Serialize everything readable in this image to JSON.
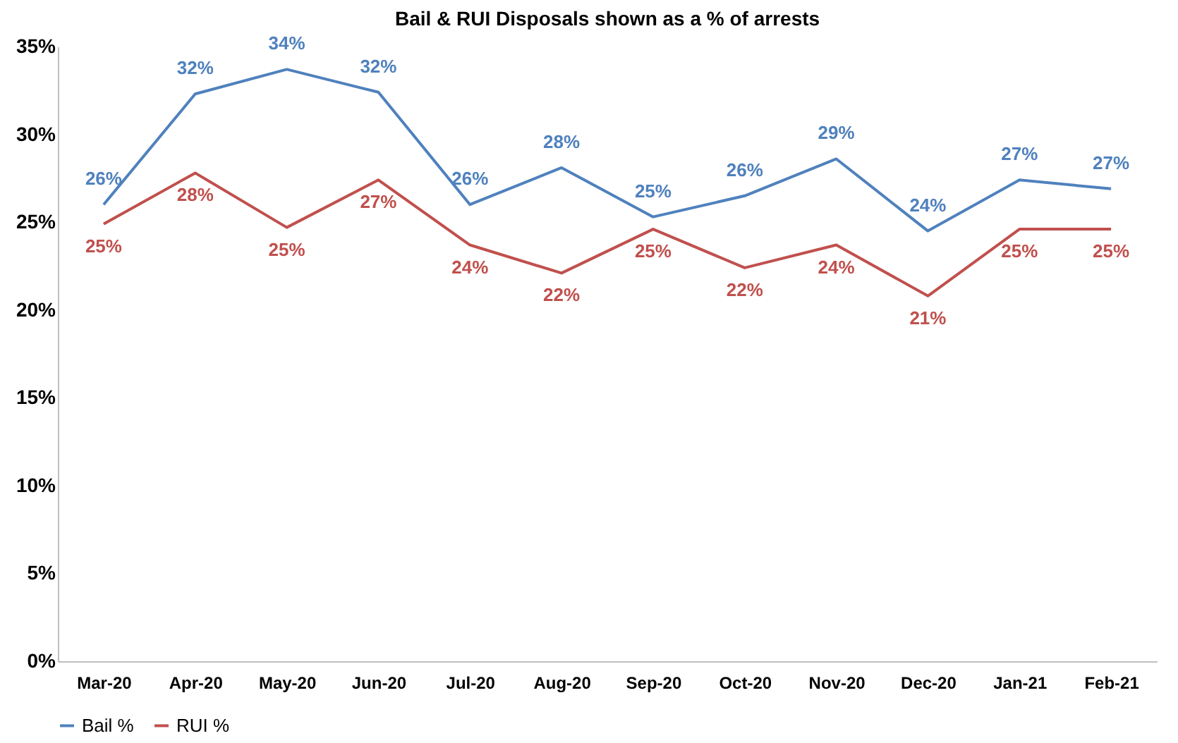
{
  "chart_data": {
    "type": "line",
    "title": "Bail & RUI Disposals shown as a % of arrests",
    "categories": [
      "Mar-20",
      "Apr-20",
      "May-20",
      "Jun-20",
      "Jul-20",
      "Aug-20",
      "Sep-20",
      "Oct-20",
      "Nov-20",
      "Dec-20",
      "Jan-21",
      "Feb-21"
    ],
    "series": [
      {
        "name": "Bail %",
        "color": "#4f81bd",
        "values": [
          26.0,
          32.3,
          33.7,
          32.4,
          26.0,
          28.1,
          25.3,
          26.5,
          28.6,
          24.5,
          27.4,
          26.9
        ],
        "value_labels": [
          "26%",
          "32%",
          "34%",
          "32%",
          "26%",
          "28%",
          "25%",
          "26%",
          "29%",
          "24%",
          "27%",
          "27%"
        ]
      },
      {
        "name": "RUI %",
        "color": "#c0504d",
        "values": [
          24.9,
          27.8,
          24.7,
          27.4,
          23.7,
          22.1,
          24.6,
          22.4,
          23.7,
          20.8,
          24.6,
          24.6
        ],
        "value_labels": [
          "25%",
          "28%",
          "25%",
          "27%",
          "24%",
          "22%",
          "25%",
          "22%",
          "24%",
          "21%",
          "25%",
          "25%"
        ]
      }
    ],
    "ylim": [
      0,
      35
    ],
    "yticks": [
      {
        "value": 0,
        "label": "0%"
      },
      {
        "value": 5,
        "label": "5%"
      },
      {
        "value": 10,
        "label": "10%"
      },
      {
        "value": 15,
        "label": "15%"
      },
      {
        "value": 20,
        "label": "20%"
      },
      {
        "value": 25,
        "label": "25%"
      },
      {
        "value": 30,
        "label": "30%"
      },
      {
        "value": 35,
        "label": "35%"
      }
    ],
    "grid": false,
    "legend": "bottom",
    "marker": "none",
    "line_style": "solid"
  }
}
